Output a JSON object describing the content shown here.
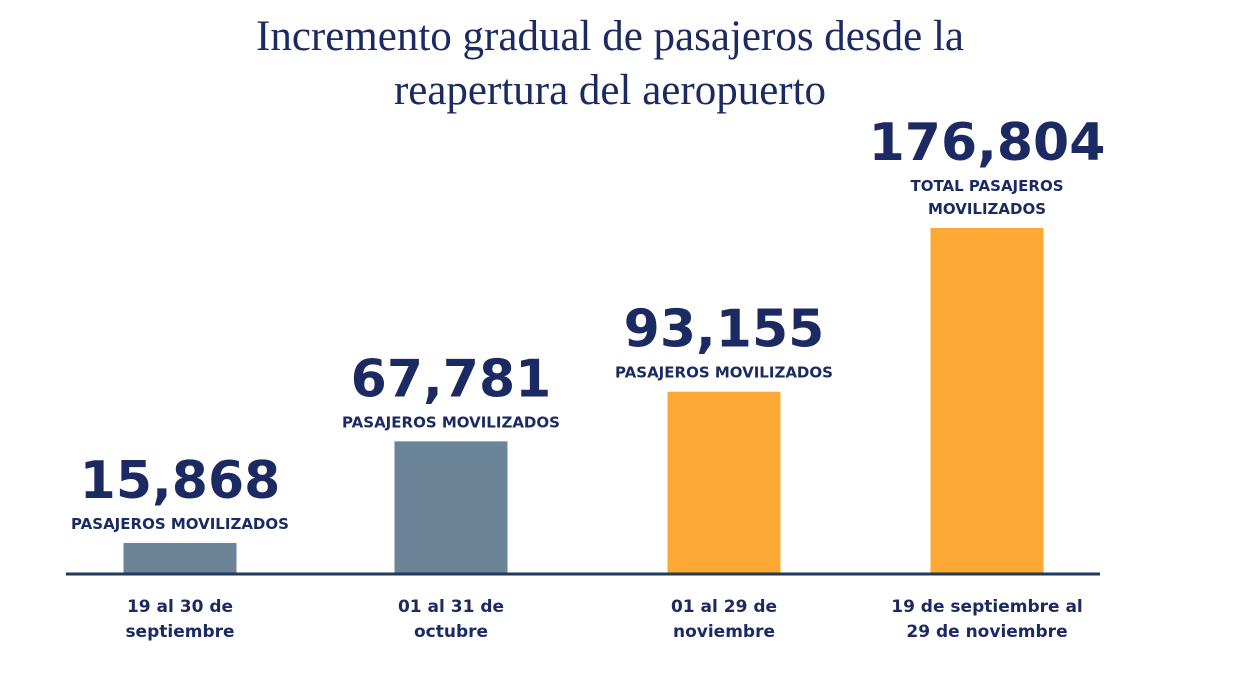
{
  "title_lines": [
    "Incremento gradual de pasajeros desde la",
    "reapertura del aeropuerto"
  ],
  "colors": {
    "title": "#1c2a63",
    "text": "#1c2a63",
    "bar_gray": "#6b8497",
    "bar_orange": "#fba834",
    "baseline": "#1f3a5a"
  },
  "chart_data": {
    "type": "bar",
    "title": "Incremento gradual de pasajeros desde la reapertura del aeropuerto",
    "xlabel": "",
    "ylabel": "",
    "grid": false,
    "categories": [
      [
        "19 al 30 de",
        "septiembre"
      ],
      [
        "01 al 31 de",
        "octubre"
      ],
      [
        "01 al 29 de",
        "noviembre"
      ],
      [
        "19 de septiembre al",
        "29 de noviembre"
      ]
    ],
    "values": [
      15868,
      67781,
      93155,
      176804
    ],
    "value_labels": [
      "15,868",
      "67,781",
      "93,155",
      "176,804"
    ],
    "sublabels": [
      [
        "PASAJEROS MOVILIZADOS"
      ],
      [
        "PASAJEROS MOVILIZADOS"
      ],
      [
        "PASAJEROS MOVILIZADOS"
      ],
      [
        "TOTAL PASAJEROS",
        "MOVILIZADOS"
      ]
    ],
    "bar_colors": [
      "#6b8497",
      "#6b8497",
      "#fba834",
      "#fba834"
    ]
  }
}
